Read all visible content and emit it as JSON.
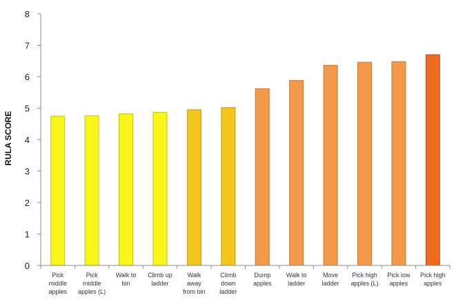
{
  "chart_data": {
    "type": "bar",
    "title": "",
    "xlabel": "",
    "ylabel": "RULA SCORE",
    "ylim": [
      0,
      8
    ],
    "yticks": [
      0,
      1,
      2,
      3,
      4,
      5,
      6,
      7,
      8
    ],
    "grid": false,
    "legend": "none",
    "categories": [
      [
        "Pick",
        "middle",
        "apples"
      ],
      [
        "Pick",
        "middle",
        "apples (L)"
      ],
      [
        "Walk to",
        "bin"
      ],
      [
        "Climb up",
        "ladder"
      ],
      [
        "Walk",
        "away",
        "from bin"
      ],
      [
        "Climb",
        "down",
        "ladder"
      ],
      [
        "Dump",
        "apples"
      ],
      [
        "Walk to",
        "ladder"
      ],
      [
        "Move",
        "ladder"
      ],
      [
        "Pick high",
        "apples (L)"
      ],
      [
        "Pick low",
        "apples"
      ],
      [
        "Pick high",
        "apples"
      ]
    ],
    "values": [
      4.75,
      4.76,
      4.82,
      4.87,
      4.95,
      5.02,
      5.62,
      5.88,
      6.36,
      6.46,
      6.48,
      6.7
    ],
    "bar_colors": [
      "#f7f51a",
      "#f7f51a",
      "#f7f51a",
      "#f7f51a",
      "#f3c61c",
      "#f3c61c",
      "#f39a4a",
      "#f39a4a",
      "#f39a4a",
      "#f39a4a",
      "#f39a4a",
      "#ee6a1e"
    ],
    "bar_edge_colors": [
      "#c9c412",
      "#c9c412",
      "#c9c412",
      "#c9c412",
      "#c89a10",
      "#c89a10",
      "#c8763a",
      "#c8763a",
      "#c8763a",
      "#c8763a",
      "#c8763a",
      "#c04a10"
    ]
  }
}
